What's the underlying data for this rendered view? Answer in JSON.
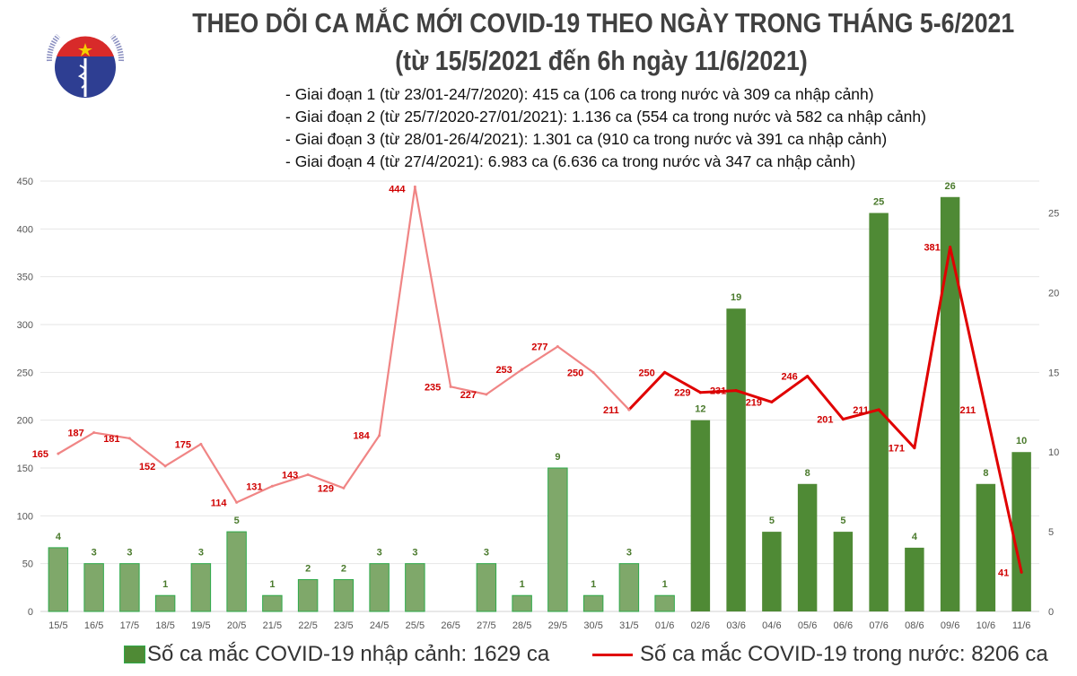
{
  "header": {
    "title_line1": "THEO DÕI CA MẮC MỚI COVID-19 THEO NGÀY TRONG THÁNG 5-6/2021",
    "title_line2": "(từ 15/5/2021 đến 6h ngày 11/6/2021)",
    "stages": [
      "- Giai đoạn 1 (từ 23/01-24/7/2020): 415 ca (106 ca trong nước và 309 ca nhập cảnh)",
      "- Giai đoạn 2 (từ 25/7/2020-27/01/2021): 1.136 ca (554 ca trong nước và 582 ca nhập cảnh)",
      "- Giai đoạn 3 (từ 28/01-26/4/2021): 1.301 ca (910 ca trong nước và 391 ca nhập cảnh)",
      "- Giai đoạn 4 (từ 27/4/2021): 6.983 ca (6.636 ca trong nước và 347 ca nhập cảnh)"
    ]
  },
  "logo": {
    "text_top": "BỘ Y TẾ",
    "text_bottom": "MINISTRY OF HEALTH"
  },
  "chart_data": {
    "type": "bar+line",
    "categories": [
      "15/5",
      "16/5",
      "17/5",
      "18/5",
      "19/5",
      "20/5",
      "21/5",
      "22/5",
      "23/5",
      "24/5",
      "25/5",
      "26/5",
      "27/5",
      "28/5",
      "29/5",
      "30/5",
      "31/5",
      "01/6",
      "02/6",
      "03/6",
      "04/6",
      "05/6",
      "06/6",
      "07/6",
      "08/6",
      "09/6",
      "10/6",
      "11/6"
    ],
    "series": [
      {
        "name": "Số ca mắc COVID-19 nhập cảnh: 1629 ca",
        "type": "bar",
        "axis": "right",
        "color": "#4f8a35",
        "light_color": "#7fa86a",
        "values": [
          4,
          3,
          3,
          1,
          3,
          5,
          1,
          2,
          2,
          3,
          3,
          null,
          3,
          1,
          9,
          1,
          3,
          1,
          12,
          19,
          5,
          8,
          5,
          25,
          4,
          26,
          8,
          10
        ]
      },
      {
        "name": "Số ca mắc COVID-19 trong nước: 8206 ca",
        "type": "line",
        "axis": "left",
        "color": "#e00000",
        "light_color": "#f08585",
        "values": [
          165,
          187,
          181,
          152,
          175,
          114,
          131,
          143,
          129,
          184,
          444,
          235,
          227,
          253,
          277,
          250,
          211,
          250,
          229,
          231,
          219,
          246,
          201,
          211,
          171,
          381,
          211,
          41
        ]
      }
    ],
    "left_axis": {
      "min": 0,
      "max": 450,
      "ticks": [
        0,
        50,
        100,
        150,
        200,
        250,
        300,
        350,
        400,
        450
      ]
    },
    "right_axis": {
      "min": 0,
      "max": 27,
      "ticks": [
        0,
        5,
        10,
        15,
        20,
        25
      ]
    },
    "grid": true,
    "legend": "bottom"
  }
}
